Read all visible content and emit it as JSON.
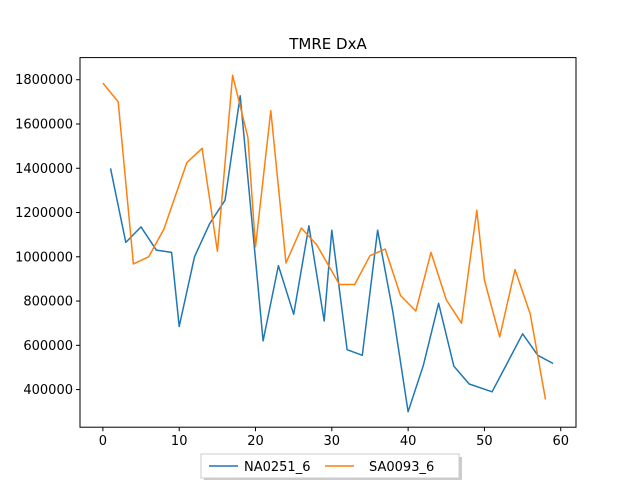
{
  "chart_data": {
    "type": "line",
    "title": "TMRE DxA",
    "xlabel": "",
    "ylabel": "",
    "xlim": [
      -3,
      62
    ],
    "ylim": [
      230000,
      1900000
    ],
    "xticks": [
      0,
      10,
      20,
      30,
      40,
      50,
      60
    ],
    "yticks": [
      400000,
      600000,
      800000,
      1000000,
      1200000,
      1400000,
      1600000,
      1800000
    ],
    "grid": false,
    "legend_position": "bottom-center",
    "series": [
      {
        "name": "NA0251_6",
        "color": "#1f77b4",
        "x": [
          1,
          3,
          5,
          7,
          9,
          10,
          12,
          14,
          16,
          18,
          21,
          23,
          25,
          27,
          29,
          30,
          32,
          34,
          36,
          38,
          40,
          42,
          44,
          46,
          48,
          51,
          53,
          55,
          57,
          59
        ],
        "y": [
          1400000,
          1065000,
          1135000,
          1030000,
          1020000,
          685000,
          1000000,
          1150000,
          1255000,
          1728000,
          620000,
          960000,
          740000,
          1140000,
          710000,
          1120000,
          580000,
          555000,
          1120000,
          750000,
          300000,
          510000,
          790000,
          505000,
          425000,
          390000,
          520000,
          652000,
          555000,
          518000
        ]
      },
      {
        "name": "SA0093_6",
        "color": "#ff7f0e",
        "x": [
          0,
          2,
          4,
          6,
          8,
          11,
          13,
          15,
          17,
          19,
          20,
          22,
          24,
          26,
          28,
          31,
          33,
          35,
          37,
          39,
          41,
          43,
          45,
          47,
          49,
          50,
          52,
          54,
          56,
          58
        ],
        "y": [
          1785000,
          1700000,
          968000,
          1000000,
          1125000,
          1425000,
          1490000,
          1025000,
          1820000,
          1540000,
          1045000,
          1660000,
          972000,
          1130000,
          1055000,
          875000,
          875000,
          1005000,
          1035000,
          825000,
          755000,
          1020000,
          805000,
          700000,
          1210000,
          895000,
          638000,
          942000,
          742000,
          355000
        ]
      }
    ]
  }
}
